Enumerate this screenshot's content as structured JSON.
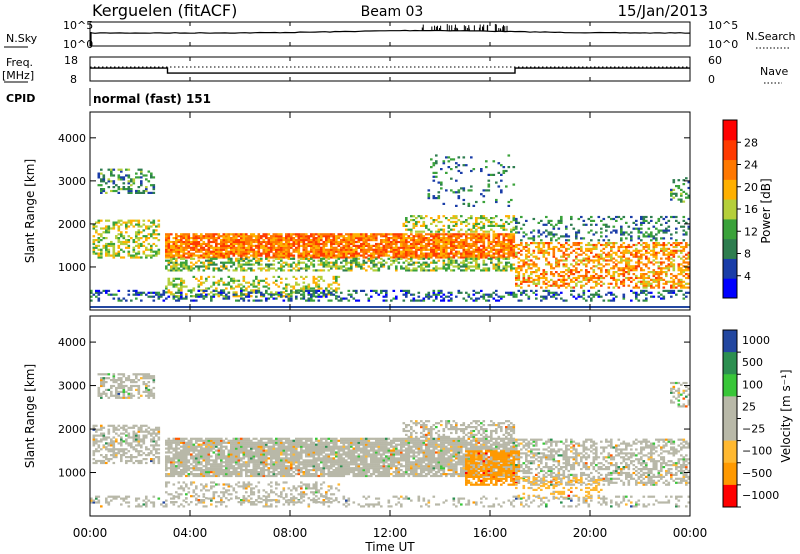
{
  "header": {
    "station": "Kerguelen (fitACF)",
    "beam": "Beam 03",
    "date": "15/Jan/2013"
  },
  "noise_panel": {
    "left_label": "N.Sky",
    "right_label": "N.Search",
    "left_ticks": [
      "10^5",
      "10^0"
    ],
    "right_ticks": [
      "10^5",
      "10^0"
    ]
  },
  "freq_panel": {
    "left_label_line1": "Freq.",
    "left_label_line2": "[MHz]",
    "right_label": "Nave",
    "left_ticks": [
      "18",
      "8"
    ],
    "right_ticks": [
      "60",
      "0"
    ],
    "freq_steps": [
      {
        "start_hour": 0,
        "end_hour": 3.1,
        "freq_mhz": 13.4
      },
      {
        "start_hour": 3.1,
        "end_hour": 17.0,
        "freq_mhz": 11.3
      },
      {
        "start_hour": 17.0,
        "end_hour": 24,
        "freq_mhz": 13.4
      }
    ],
    "nave_level": 35
  },
  "cpid": {
    "label": "CPID",
    "mode": "normal (fast) 151"
  },
  "x_axis": {
    "ticks": [
      "00:00",
      "04:00",
      "08:00",
      "12:00",
      "16:00",
      "20:00",
      "00:00"
    ],
    "label": "Time UT"
  },
  "colors": {
    "power": [
      "#0000ff",
      "#1a3da8",
      "#2e7d4f",
      "#3aa23a",
      "#b5cf3a",
      "#ffb000",
      "#ff7800",
      "#ff3a00",
      "#ff0000"
    ],
    "velocity": [
      "#ff0000",
      "#ff5a00",
      "#ff9900",
      "#ffb830",
      "#b8b8a8",
      "#b8b8a8",
      "#39c639",
      "#2c8f50",
      "#2347a0",
      "#0033cc"
    ]
  },
  "chart_data": [
    {
      "type": "heatmap",
      "name": "power",
      "ylabel": "Slant Range [km]",
      "xlabel": "",
      "y_ticks": [
        "1000",
        "2000",
        "3000",
        "4000"
      ],
      "ylim": [
        0,
        4600
      ],
      "xlim": [
        0,
        24
      ],
      "colorbar": {
        "label": "Power [dB]",
        "ticks": [
          "4",
          "8",
          "12",
          "16",
          "20",
          "24",
          "28"
        ],
        "range": [
          0,
          32
        ]
      },
      "scatter_bands": [
        {
          "t0": 0.3,
          "t1": 2.6,
          "r0": 2700,
          "r1": 3300,
          "level": 10,
          "density": 0.45
        },
        {
          "t0": 0.1,
          "t1": 2.8,
          "r0": 1200,
          "r1": 2100,
          "level": 16,
          "density": 0.5
        },
        {
          "t0": 3.0,
          "t1": 17.0,
          "r0": 1200,
          "r1": 1800,
          "level": 24,
          "density": 0.85
        },
        {
          "t0": 3.0,
          "t1": 17.0,
          "r0": 900,
          "r1": 1200,
          "level": 14,
          "density": 0.55
        },
        {
          "t0": 3.0,
          "t1": 10.0,
          "r0": 300,
          "r1": 800,
          "level": 16,
          "density": 0.35
        },
        {
          "t0": 12.5,
          "t1": 17.0,
          "r0": 1800,
          "r1": 2200,
          "level": 16,
          "density": 0.45
        },
        {
          "t0": 13.5,
          "t1": 17.0,
          "r0": 2400,
          "r1": 3600,
          "level": 8,
          "density": 0.12
        },
        {
          "t0": 17.0,
          "t1": 24.0,
          "r0": 500,
          "r1": 1600,
          "level": 22,
          "density": 0.5
        },
        {
          "t0": 17.0,
          "t1": 24.0,
          "r0": 1600,
          "r1": 2200,
          "level": 8,
          "density": 0.25
        },
        {
          "t0": 0.0,
          "t1": 24.0,
          "r0": 200,
          "r1": 450,
          "level": 6,
          "density": 0.35
        },
        {
          "t0": 23.2,
          "t1": 24.0,
          "r0": 2500,
          "r1": 3100,
          "level": 10,
          "density": 0.4
        }
      ]
    },
    {
      "type": "heatmap",
      "name": "velocity",
      "ylabel": "Slant Range [km]",
      "xlabel": "Time UT",
      "y_ticks": [
        "1000",
        "2000",
        "3000",
        "4000"
      ],
      "ylim": [
        0,
        4600
      ],
      "xlim": [
        0,
        24
      ],
      "colorbar": {
        "label": "Velocity [m s⁻¹]",
        "ticks": [
          "1000",
          "500",
          "100",
          "25",
          "−25",
          "−100",
          "−500",
          "−1000"
        ]
      },
      "scatter_bands": [
        {
          "t0": 0.3,
          "t1": 2.6,
          "r0": 2700,
          "r1": 3300,
          "level": 5,
          "density": 0.55
        },
        {
          "t0": 0.1,
          "t1": 2.8,
          "r0": 1200,
          "r1": 2100,
          "level": 5,
          "density": 0.55
        },
        {
          "t0": 3.0,
          "t1": 17.0,
          "r0": 900,
          "r1": 1800,
          "level": 4,
          "density": 0.85
        },
        {
          "t0": 3.0,
          "t1": 10.0,
          "r0": 300,
          "r1": 800,
          "level": 4,
          "density": 0.35
        },
        {
          "t0": 12.5,
          "t1": 17.0,
          "r0": 1800,
          "r1": 2200,
          "level": 4,
          "density": 0.45
        },
        {
          "t0": 15.0,
          "t1": 17.2,
          "r0": 700,
          "r1": 1500,
          "level": 2,
          "density": 0.75
        },
        {
          "t0": 17.0,
          "t1": 24.0,
          "r0": 700,
          "r1": 1800,
          "level": 4,
          "density": 0.5
        },
        {
          "t0": 17.0,
          "t1": 20.5,
          "r0": 400,
          "r1": 900,
          "level": 3,
          "density": 0.3
        },
        {
          "t0": 23.2,
          "t1": 24.0,
          "r0": 2500,
          "r1": 3100,
          "level": 4,
          "density": 0.4
        },
        {
          "t0": 0.0,
          "t1": 24.0,
          "r0": 200,
          "r1": 450,
          "level": 5,
          "density": 0.25
        }
      ]
    }
  ]
}
